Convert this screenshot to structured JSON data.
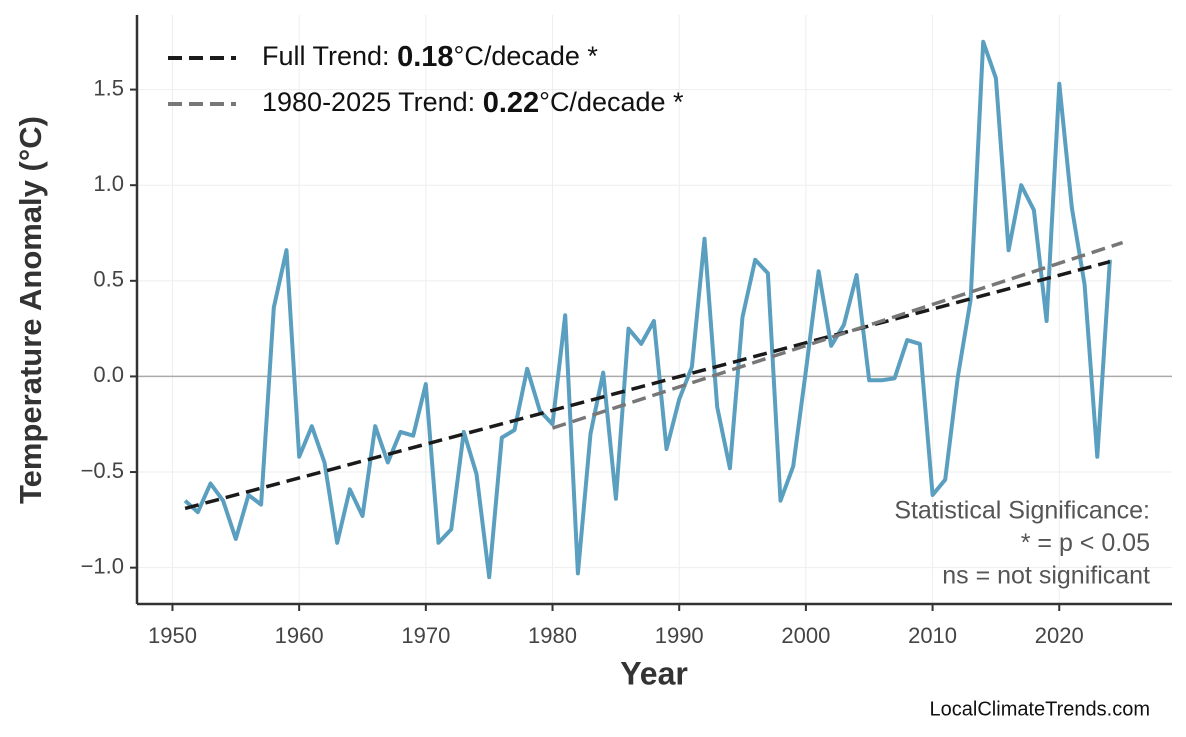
{
  "chart_data": {
    "type": "line",
    "y_label": "Temperature Anomaly (°C)",
    "x_label": "Year",
    "xlim": [
      1947.2,
      2028.9
    ],
    "ylim": [
      -1.19,
      1.89
    ],
    "xticks": [
      1950,
      1960,
      1970,
      1980,
      1990,
      2000,
      2010,
      2020
    ],
    "yticks": [
      {
        "value": -1,
        "label": "−1.0"
      },
      {
        "value": -0.5,
        "label": "−0.5"
      },
      {
        "value": 0,
        "label": "0.0"
      },
      0.5,
      {
        "value": 1,
        "label": "1.0"
      },
      1.5
    ],
    "grid": true,
    "x": [
      1951,
      1952,
      1953,
      1954,
      1955,
      1956,
      1957,
      1958,
      1959,
      1960,
      1961,
      1962,
      1963,
      1964,
      1965,
      1966,
      1967,
      1968,
      1969,
      1970,
      1971,
      1972,
      1973,
      1974,
      1975,
      1976,
      1977,
      1978,
      1979,
      1980,
      1981,
      1982,
      1983,
      1984,
      1985,
      1986,
      1987,
      1988,
      1989,
      1990,
      1991,
      1992,
      1993,
      1994,
      1995,
      1996,
      1997,
      1998,
      1999,
      2000,
      2001,
      2002,
      2003,
      2004,
      2005,
      2006,
      2007,
      2008,
      2009,
      2010,
      2011,
      2012,
      2013,
      2014,
      2015,
      2016,
      2017,
      2018,
      2019,
      2020,
      2021,
      2022,
      2023,
      2024
    ],
    "values": [
      -0.65,
      -0.71,
      -0.56,
      -0.65,
      -0.85,
      -0.62,
      -0.67,
      0.36,
      0.66,
      -0.42,
      -0.26,
      -0.45,
      -0.87,
      -0.59,
      -0.73,
      -0.26,
      -0.45,
      -0.29,
      -0.31,
      -0.04,
      -0.87,
      -0.8,
      -0.29,
      -0.51,
      -1.05,
      -0.32,
      -0.28,
      0.04,
      -0.18,
      -0.25,
      0.32,
      -1.03,
      -0.3,
      0.02,
      -0.64,
      0.25,
      0.17,
      0.29,
      -0.38,
      -0.12,
      0.05,
      0.72,
      -0.16,
      -0.48,
      0.31,
      0.61,
      0.54,
      -0.65,
      -0.47,
      0.03,
      0.55,
      0.16,
      0.27,
      0.53,
      -0.02,
      -0.02,
      -0.01,
      0.19,
      0.17,
      -0.62,
      -0.54,
      0.0,
      0.4,
      1.75,
      1.56,
      0.66,
      1.0,
      0.87,
      0.29,
      1.53,
      0.88,
      0.48,
      -0.42,
      0.61
    ],
    "color": "#5a9fbf",
    "trends": [
      {
        "name": "Full Trend:",
        "slope": 0.18,
        "unit": "°C/decade *",
        "color": "#1a1a1a",
        "x": [
          1951,
          2024
        ],
        "values": [
          -0.69,
          0.6
        ]
      },
      {
        "name": "1980-2025 Trend:",
        "slope": 0.22,
        "unit": "°C/decade *",
        "color": "#777777",
        "x": [
          1980,
          2025
        ],
        "values": [
          -0.27,
          0.7
        ]
      }
    ],
    "annotation": [
      "Statistical Significance:",
      "* = p < 0.05",
      "ns = not significant"
    ],
    "source": "LocalClimateTrends.com"
  }
}
